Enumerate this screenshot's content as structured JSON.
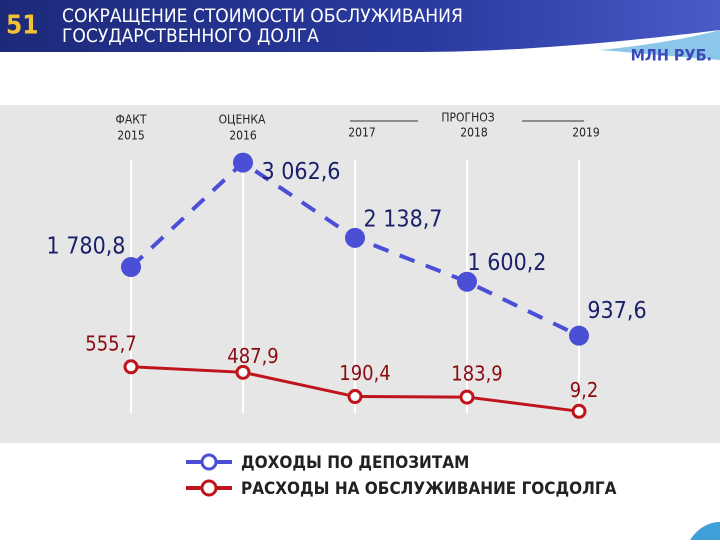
{
  "slide_number": "51",
  "unit": "МЛН РУБ.",
  "chart_data": {
    "type": "line",
    "title": "СОКРАЩЕНИЕ СТОИМОСТИ ОБСЛУЖИВАНИЯ ГОСУДАРСТВЕННОГО ДОЛГА",
    "period_labels": [
      "ФАКТ",
      "ОЦЕНКА",
      "ПРОГНОЗ"
    ],
    "categories": [
      "2015",
      "2016",
      "2017",
      "2018",
      "2019"
    ],
    "ylim": [
      -380,
      3770
    ],
    "series": [
      {
        "name": "ДОХОДЫ ПО ДЕПОЗИТАМ",
        "color": "#4a4fd6",
        "dashed": true,
        "values": [
          1780.8,
          3062.6,
          2138.7,
          1600.2,
          937.6
        ],
        "value_labels": [
          "1 780,8",
          "3 062,6",
          "2 138,7",
          "1 600,2",
          "937,6"
        ]
      },
      {
        "name": "РАСХОДЫ НА ОБСЛУЖИВАНИЕ ГОСДОЛГА",
        "color": "#c0141c",
        "dashed": false,
        "values": [
          555.7,
          487.9,
          190.4,
          183.9,
          9.2
        ],
        "value_labels": [
          "555,7",
          "487,9",
          "190,4",
          "183,9",
          "9,2"
        ]
      }
    ]
  }
}
